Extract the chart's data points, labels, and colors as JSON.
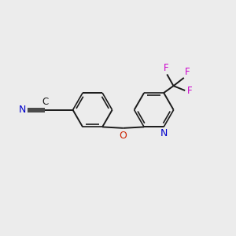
{
  "background_color": "#ececec",
  "bond_color": "#1a1a1a",
  "atom_colors": {
    "N_nitrile": "#0000cc",
    "N_pyridine": "#0000cc",
    "O": "#cc2200",
    "F": "#cc00cc",
    "C": "#1a1a1a"
  },
  "figsize": [
    3.0,
    3.0
  ],
  "dpi": 100
}
